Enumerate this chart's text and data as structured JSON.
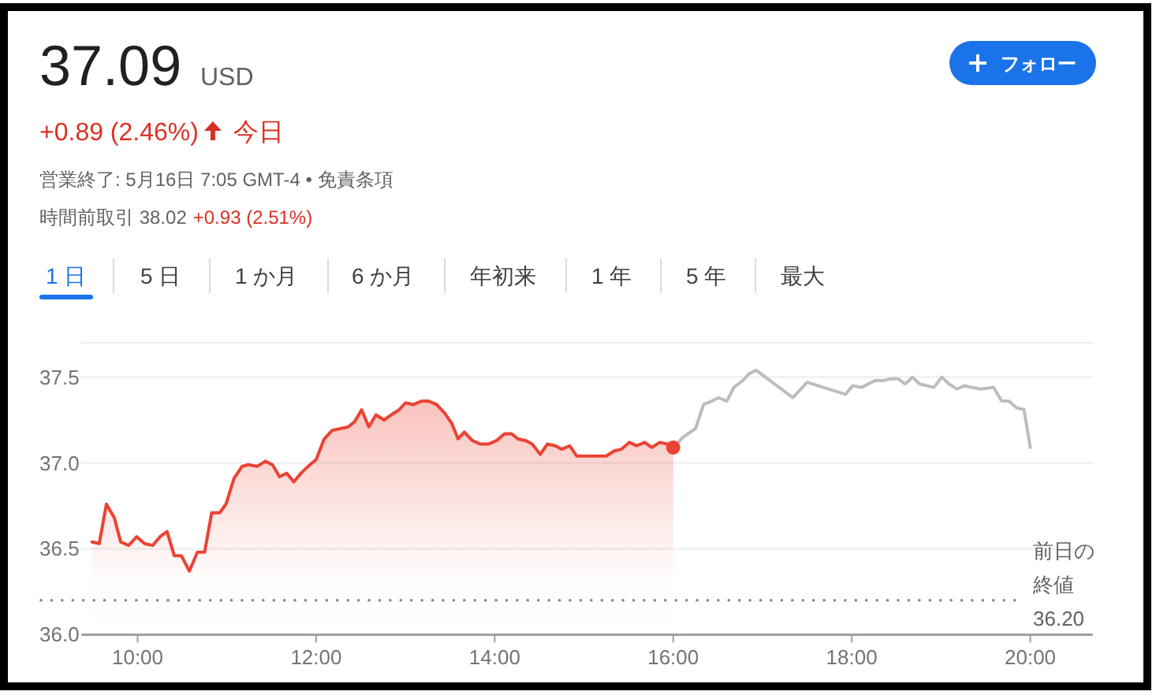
{
  "chart_data": {
    "type": "line",
    "annotations": [
      "37.09",
      "USD",
      "+0.89 (2.46%)",
      "今日",
      "営業終了: 5月16日 7:05 GMT-4 • 免責条項",
      "時間前取引 38.02",
      "+0.93 (2.51%)",
      "フォロー",
      "1 日",
      "5 日",
      "1 か月",
      "6 か月",
      "年初来",
      "1 年",
      "5 年",
      "最大"
    ],
    "series": [
      {
        "type": "area",
        "color": "#ea4335",
        "x": [
          9.49,
          9.57,
          9.65,
          9.74,
          9.81,
          9.9,
          9.99,
          10.08,
          10.17,
          10.25,
          10.33,
          10.41,
          10.49,
          10.58,
          10.67,
          10.75,
          10.83,
          10.92,
          10.99,
          11.08,
          11.17,
          11.24,
          11.34,
          11.43,
          11.51,
          11.59,
          11.67,
          11.75,
          11.83,
          11.91,
          12.0,
          12.09,
          12.18,
          12.27,
          12.36,
          12.43,
          12.51,
          12.59,
          12.67,
          12.76,
          12.84,
          12.93,
          13.0,
          13.09,
          13.18,
          13.26,
          13.35,
          13.44,
          13.52,
          13.59,
          13.66,
          13.75,
          13.84,
          13.93,
          14.02,
          14.11,
          14.19,
          14.26,
          14.35,
          14.42,
          14.51,
          14.59,
          14.68,
          14.75,
          14.84,
          14.92,
          15.0,
          15.09,
          15.18,
          15.25,
          15.34,
          15.42,
          15.51,
          15.59,
          15.68,
          15.76,
          15.85,
          15.93,
          16.0
        ],
        "values": [
          36.54,
          36.53,
          36.76,
          36.68,
          36.54,
          36.52,
          36.57,
          36.53,
          36.52,
          36.57,
          36.6,
          36.46,
          36.46,
          36.37,
          36.48,
          36.48,
          36.71,
          36.71,
          36.76,
          36.91,
          36.98,
          36.99,
          36.98,
          37.01,
          36.99,
          36.92,
          36.94,
          36.89,
          36.94,
          36.98,
          37.02,
          37.14,
          37.19,
          37.2,
          37.21,
          37.24,
          37.31,
          37.21,
          37.28,
          37.25,
          37.28,
          37.31,
          37.35,
          37.34,
          37.36,
          37.36,
          37.34,
          37.29,
          37.23,
          37.14,
          37.18,
          37.13,
          37.11,
          37.11,
          37.13,
          37.17,
          37.17,
          37.14,
          37.13,
          37.11,
          37.05,
          37.11,
          37.1,
          37.08,
          37.1,
          37.04,
          37.04,
          37.04,
          37.04,
          37.04,
          37.07,
          37.08,
          37.12,
          37.1,
          37.12,
          37.09,
          37.12,
          37.11,
          37.09
        ]
      },
      {
        "type": "line",
        "color": "#bdbdbd",
        "x": [
          16.0,
          16.11,
          16.25,
          16.34,
          16.43,
          16.51,
          16.6,
          16.68,
          16.78,
          16.85,
          16.93,
          17.34,
          17.5,
          17.93,
          18.01,
          18.11,
          18.26,
          18.35,
          18.44,
          18.52,
          18.6,
          18.68,
          18.76,
          18.92,
          19.01,
          19.09,
          19.18,
          19.26,
          19.35,
          19.44,
          19.59,
          19.68,
          19.76,
          19.85,
          19.93,
          20.0
        ],
        "values": [
          37.09,
          37.15,
          37.2,
          37.34,
          37.36,
          37.38,
          37.36,
          37.44,
          37.48,
          37.52,
          37.54,
          37.38,
          37.47,
          37.4,
          37.45,
          37.44,
          37.48,
          37.48,
          37.49,
          37.49,
          37.46,
          37.5,
          37.46,
          37.44,
          37.5,
          37.46,
          37.43,
          37.45,
          37.44,
          37.43,
          37.44,
          37.36,
          37.36,
          37.32,
          37.31,
          37.09
        ]
      },
      {
        "type": "scatter",
        "color": "#ea4335",
        "x": [
          16.0
        ],
        "values": [
          37.09
        ]
      }
    ],
    "xlim": [
      9.37,
      20.7
    ],
    "xticks": [
      {
        "value": 10,
        "label": "10:00"
      },
      {
        "value": 12,
        "label": "12:00"
      },
      {
        "value": 14,
        "label": "14:00"
      },
      {
        "value": 16,
        "label": "16:00"
      },
      {
        "value": 18,
        "label": "18:00"
      },
      {
        "value": 20,
        "label": "20:00"
      }
    ],
    "ylim": [
      36.0,
      37.7
    ],
    "yticks": [
      {
        "value": 36,
        "label": "36.0"
      },
      36.5,
      {
        "value": 37,
        "label": "37.0"
      },
      37.5
    ],
    "grid": "y",
    "ref_lines": [
      {
        "axis": "y",
        "value": 36.2,
        "label": "前日の終値 36.20",
        "color": "#80868b",
        "line_style": "dotted"
      }
    ]
  }
}
